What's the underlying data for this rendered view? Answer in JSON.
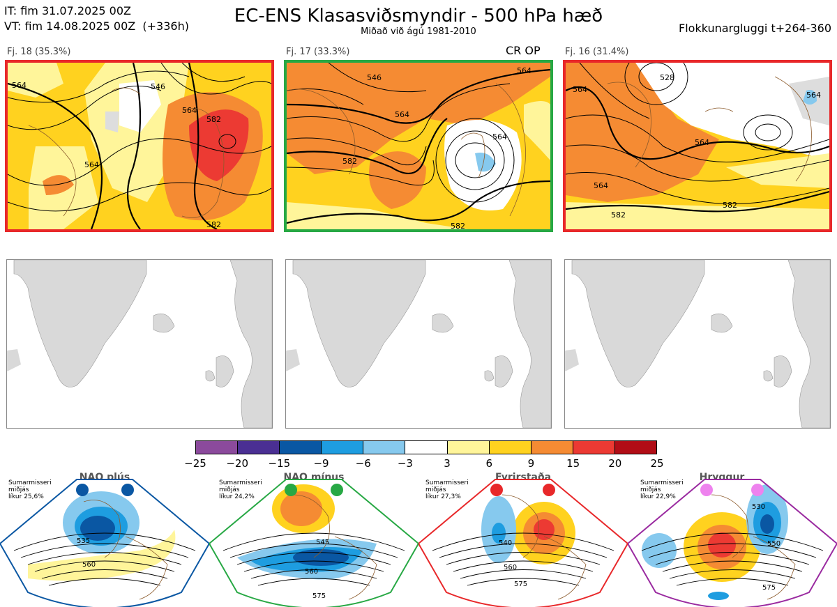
{
  "header": {
    "it_line": "IT: fim 31.07.2025 00Z",
    "vt_line": "VT: fim 14.08.2025 00Z  (+336h)",
    "title": "EC-ENS Klasasviðsmyndir - 500 hPa hæð",
    "subtitle": "Miðað við ágú 1981-2010",
    "window": "Flokkunargluggi t+264-360"
  },
  "clusters": [
    {
      "label": "Fj. 18 (35.3%)",
      "border_color": "#e8282a",
      "contours": [
        "564",
        "546",
        "564",
        "582",
        "564",
        "582"
      ]
    },
    {
      "label": "Fj. 17 (33.3%)",
      "border_color": "#27a844",
      "extra": "CR OP",
      "contours": [
        "546",
        "564",
        "564",
        "564",
        "582",
        "582"
      ]
    },
    {
      "label": "Fj. 16 (31.4%)",
      "border_color": "#e8282a",
      "contours": [
        "564",
        "528",
        "564",
        "564",
        "564",
        "582",
        "582"
      ]
    }
  ],
  "colorbar": {
    "colors": [
      "#8b4a9c",
      "#4a2f93",
      "#0a57a3",
      "#1e9de0",
      "#86c9ee",
      "#ffffff",
      "#fff59a",
      "#ffd21f",
      "#f58b33",
      "#ec3a33",
      "#b10d16"
    ],
    "ticks": [
      "−25",
      "−20",
      "−15",
      "−9",
      "−6",
      "−3",
      "3",
      "6",
      "9",
      "15",
      "20",
      "25"
    ]
  },
  "regimes": [
    {
      "name": "NAO plús",
      "season": "Sumarmisseri",
      "season_sub": "miðjás",
      "prob": "líkur 25,6%",
      "color": "#0a57a3",
      "labels": [
        "535",
        "560"
      ]
    },
    {
      "name": "NAO mínus",
      "season": "Sumarmisseri",
      "season_sub": "miðjás",
      "prob": "líkur 24,2%",
      "color": "#27a844",
      "labels": [
        "545",
        "560",
        "575"
      ]
    },
    {
      "name": "Fyrirstaða",
      "season": "Sumarmisseri",
      "season_sub": "miðjás",
      "prob": "líkur 27,3%",
      "color": "#e8282a",
      "labels": [
        "540",
        "560",
        "575"
      ]
    },
    {
      "name": "Hryggur",
      "season": "Sumarmisseri",
      "season_sub": "miðjás",
      "prob": "líkur 22,9%",
      "color": "#9a2aa0",
      "dot_color": "#ee82ee",
      "labels": [
        "530",
        "550",
        "575"
      ]
    }
  ]
}
